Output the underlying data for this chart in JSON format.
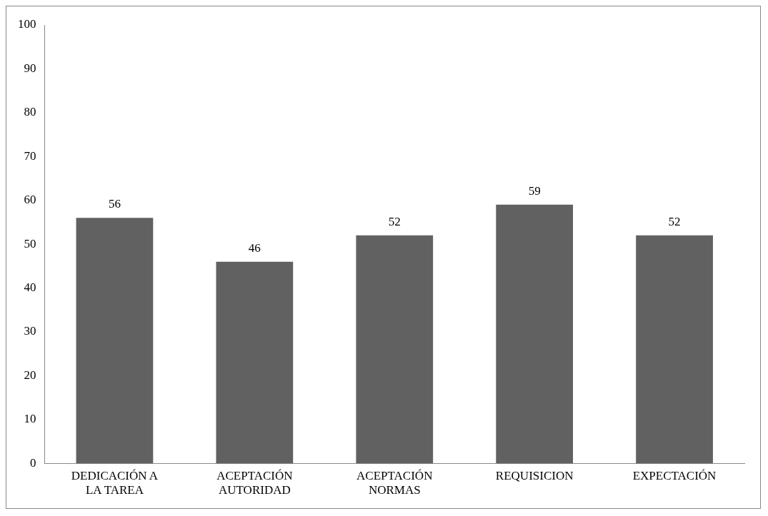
{
  "chart_data": {
    "type": "bar",
    "categories": [
      "DEDICACIÓN A LA TAREA",
      "ACEPTACIÓN AUTORIDAD",
      "ACEPTACIÓN NORMAS",
      "REQUISICION",
      "EXPECTACIÓN"
    ],
    "values": [
      56,
      46,
      52,
      59,
      52
    ],
    "color": "#616161",
    "ylim": [
      0,
      100
    ],
    "yticks": [
      0,
      10,
      20,
      30,
      40,
      50,
      60,
      70,
      80,
      90,
      100
    ],
    "grid": false,
    "legend": false,
    "data_labels": true
  }
}
